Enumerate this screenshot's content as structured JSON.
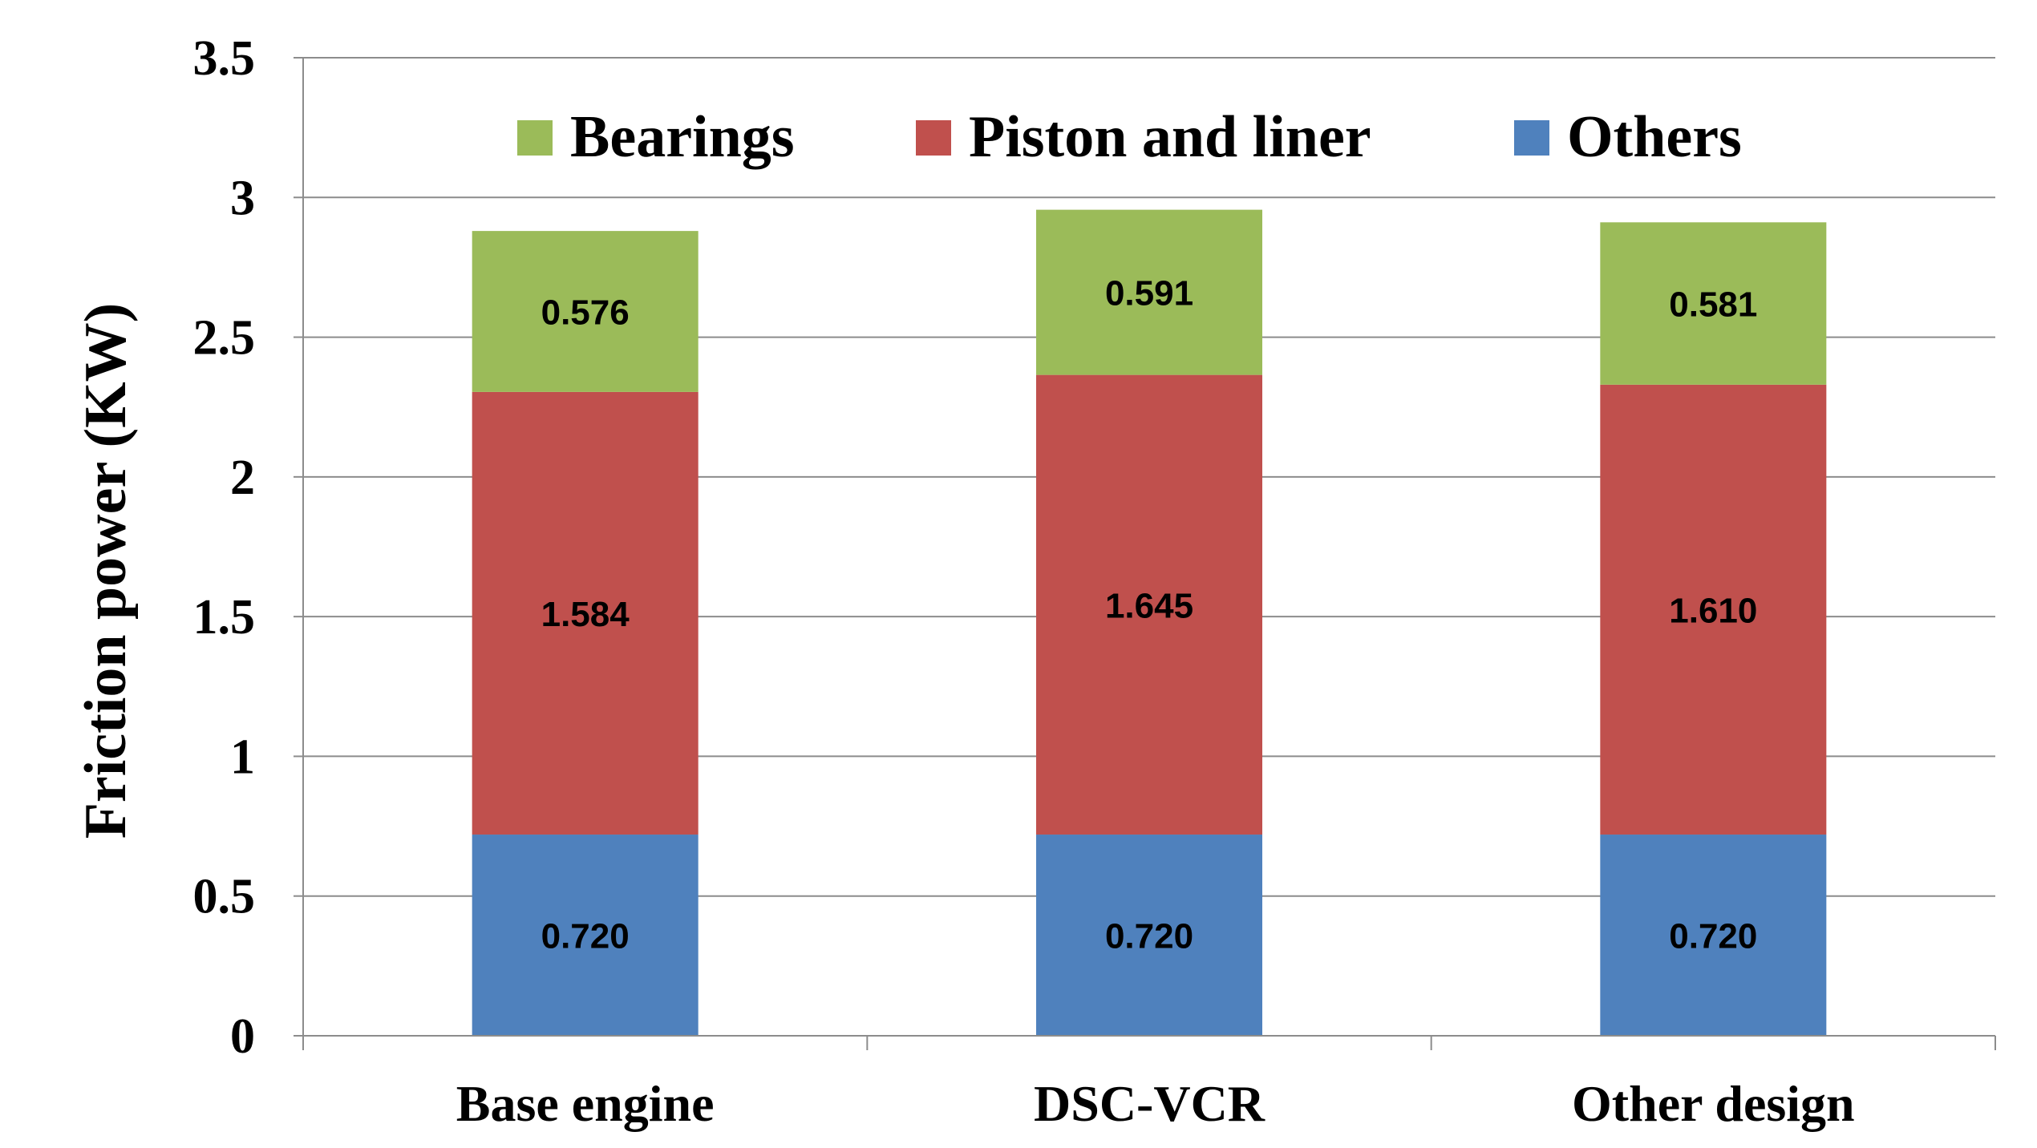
{
  "chart_data": {
    "type": "bar",
    "stacked": true,
    "title": "",
    "xlabel": "",
    "ylabel": "Friction power (KW)",
    "ylim": [
      0,
      3.5
    ],
    "yticks": [
      "0",
      "0.5",
      "1",
      "1.5",
      "2",
      "2.5",
      "3",
      "3.5"
    ],
    "ytick_values": [
      0,
      0.5,
      1,
      1.5,
      2,
      2.5,
      3,
      3.5
    ],
    "grid": true,
    "legend_position": "top",
    "categories": [
      "Base engine",
      "DSC-VCR",
      "Other design"
    ],
    "series": [
      {
        "name": "Others",
        "color": "#4f81bd",
        "values": [
          0.72,
          0.72,
          0.72
        ],
        "labels": [
          "0.720",
          "0.720",
          "0.720"
        ]
      },
      {
        "name": "Piston and liner",
        "color": "#c0504d",
        "values": [
          1.584,
          1.645,
          1.61
        ],
        "labels": [
          "1.584",
          "1.645",
          "1.610"
        ]
      },
      {
        "name": "Bearings",
        "color": "#9bbb59",
        "values": [
          0.576,
          0.591,
          0.581
        ],
        "labels": [
          "0.576",
          "0.591",
          "0.581"
        ]
      }
    ],
    "legend_order": [
      "Bearings",
      "Piston and liner",
      "Others"
    ]
  }
}
